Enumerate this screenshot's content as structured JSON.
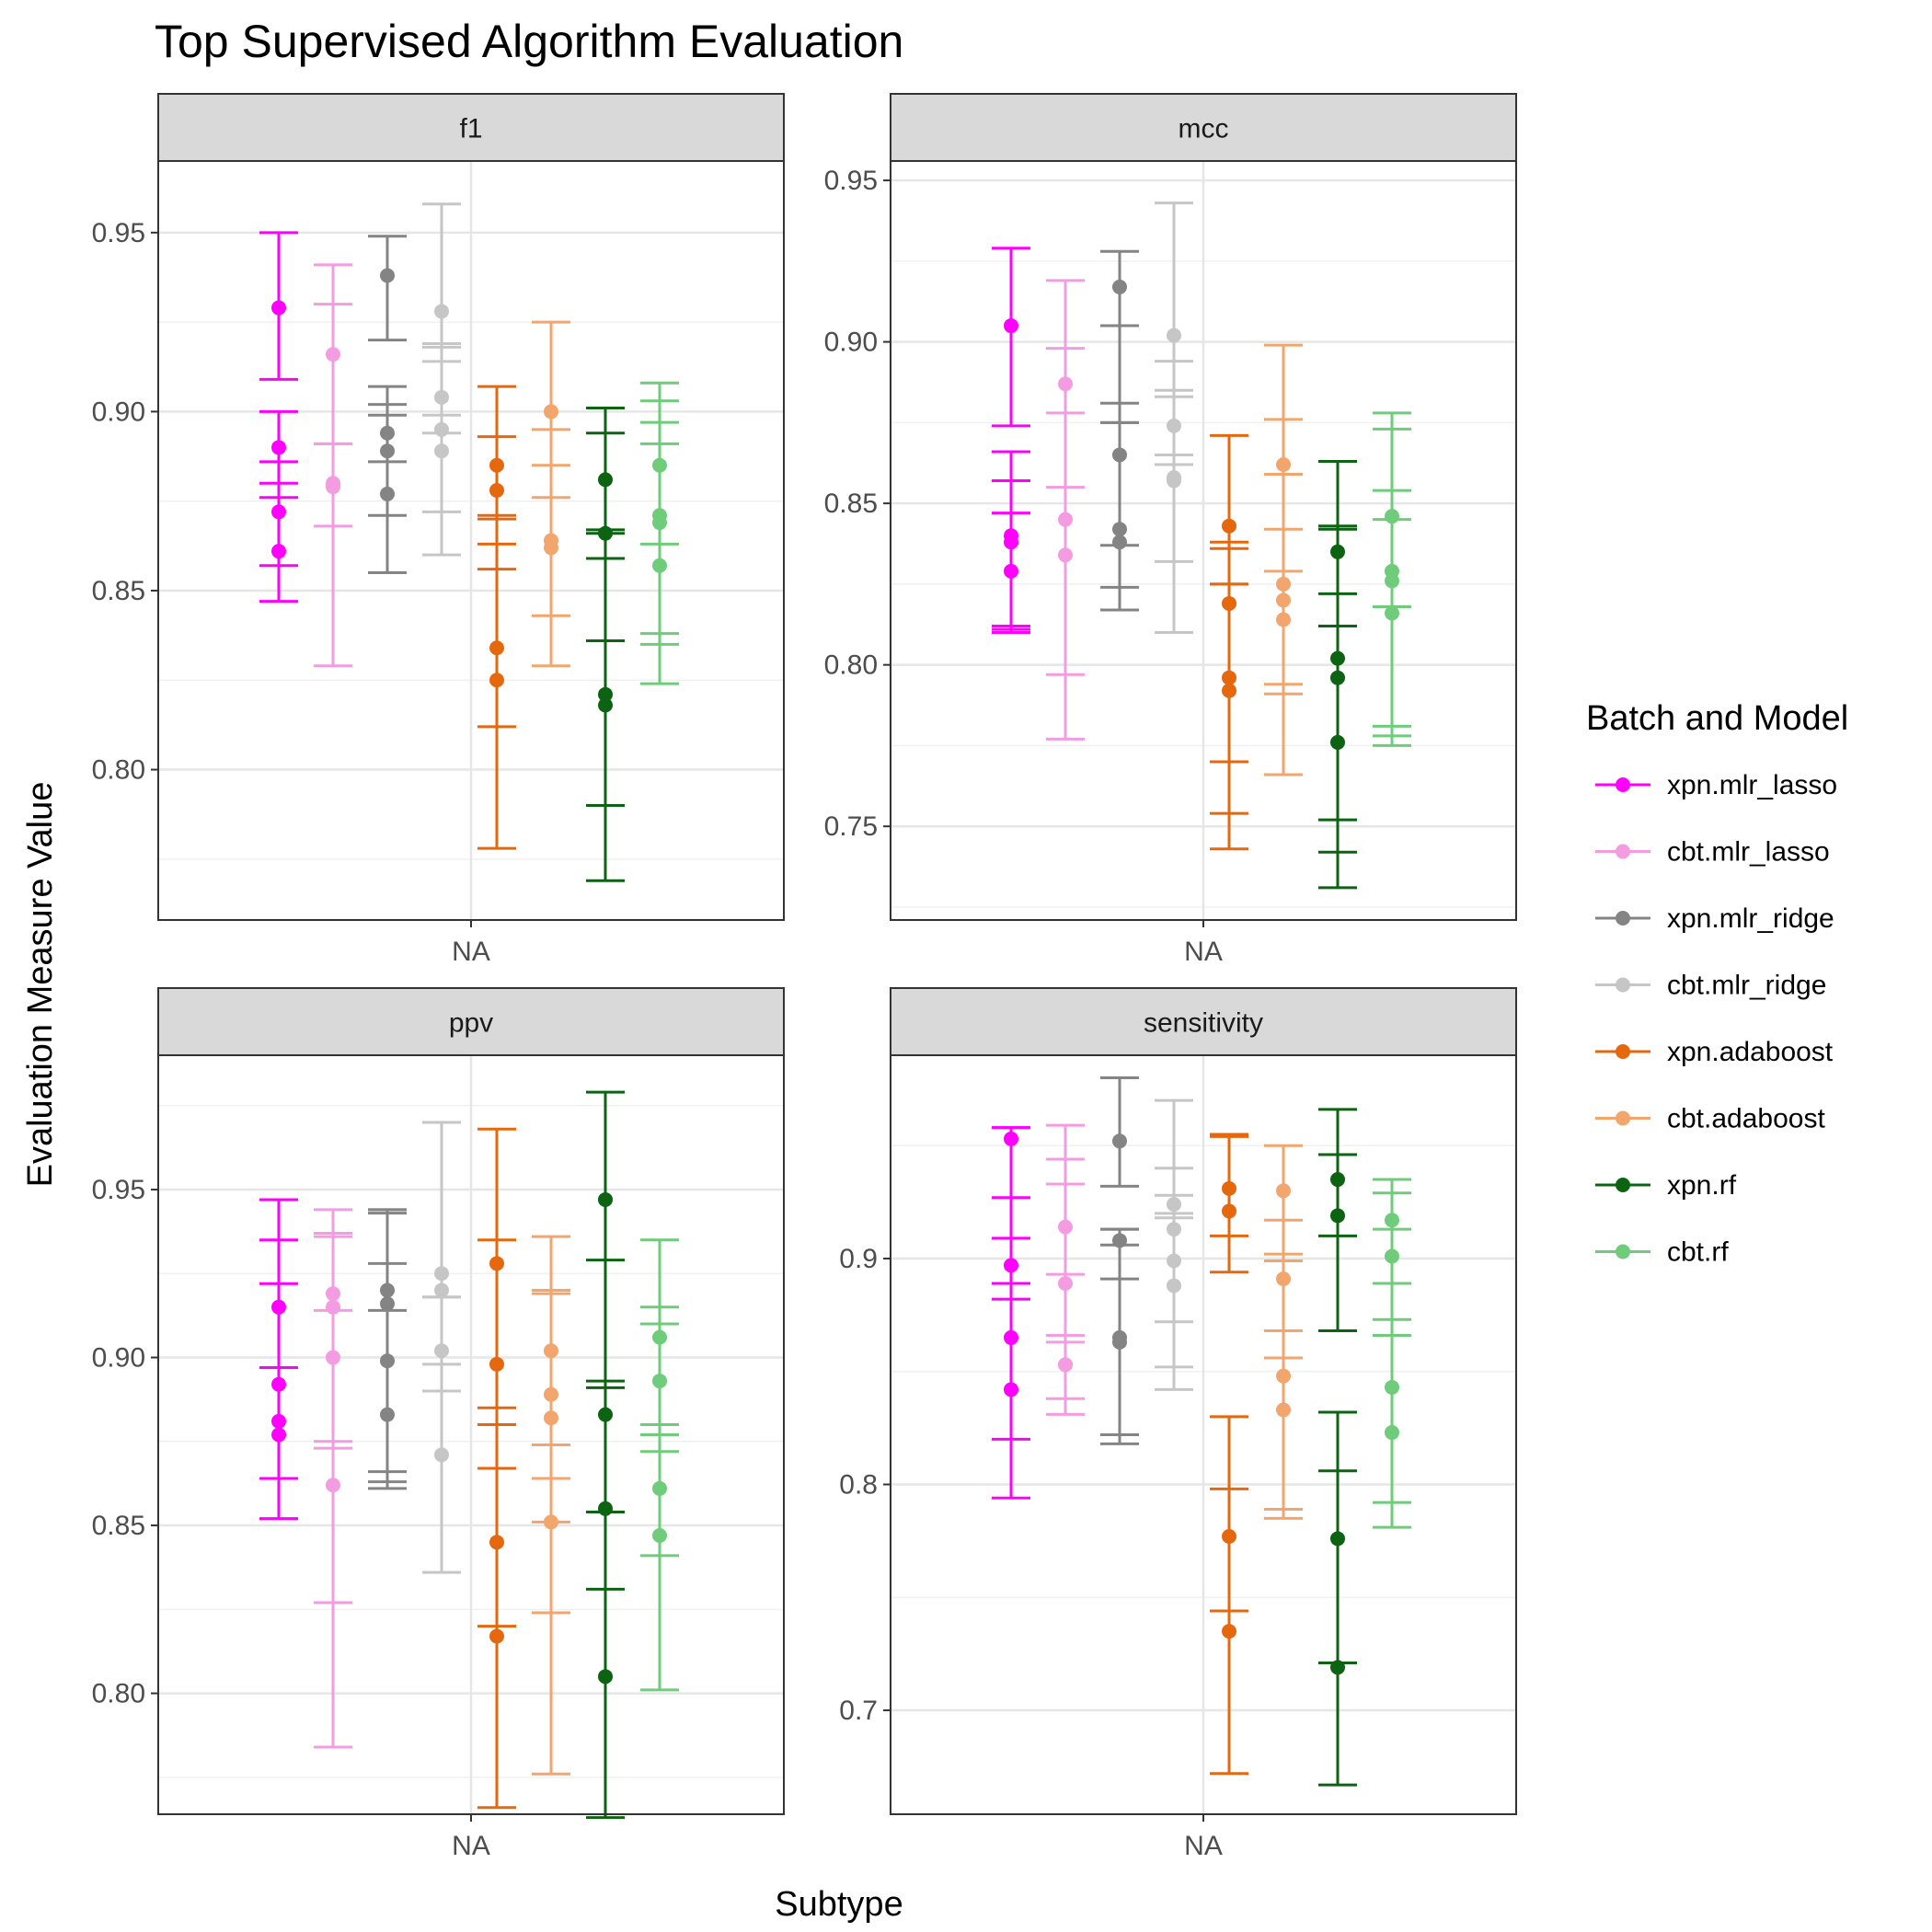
{
  "chart_data": {
    "type": "scatter",
    "title": "Top Supervised Algorithm Evaluation",
    "xlabel": "Subtype",
    "ylabel": "Evaluation Measure Value",
    "x_category": "NA",
    "legend": {
      "title": "Batch and Model",
      "placement": "right",
      "series": [
        {
          "name": "xpn.mlr_lasso",
          "color": "#ff00ff"
        },
        {
          "name": "cbt.mlr_lasso",
          "color": "#f39ce2"
        },
        {
          "name": "xpn.mlr_ridge",
          "color": "#848484"
        },
        {
          "name": "cbt.mlr_ridge",
          "color": "#c6c6c6"
        },
        {
          "name": "xpn.adaboost",
          "color": "#e5680e"
        },
        {
          "name": "cbt.adaboost",
          "color": "#f2a66d"
        },
        {
          "name": "xpn.rf",
          "color": "#0c6412"
        },
        {
          "name": "cbt.rf",
          "color": "#6fcc7a"
        }
      ]
    },
    "grid": true,
    "panels": [
      {
        "title": "f1",
        "ylim": [
          0.758,
          0.97
        ],
        "yticks": [
          0.8,
          0.85,
          0.9,
          0.95
        ],
        "ytick_labels": [
          "0.80",
          "0.85",
          "0.90",
          "0.95"
        ],
        "series": [
          {
            "points": [
              {
                "y": 0.929,
                "lo": 0.909,
                "hi": 0.95
              },
              {
                "y": 0.89,
                "lo": 0.88,
                "hi": 0.9
              },
              {
                "y": 0.872,
                "lo": 0.857,
                "hi": 0.886
              },
              {
                "y": 0.861,
                "lo": 0.847,
                "hi": 0.876
              }
            ]
          },
          {
            "points": [
              {
                "y": 0.916,
                "lo": 0.891,
                "hi": 0.941
              },
              {
                "y": 0.88,
                "lo": 0.868,
                "hi": 0.891
              },
              {
                "y": 0.879,
                "lo": 0.829,
                "hi": 0.93
              }
            ]
          },
          {
            "points": [
              {
                "y": 0.938,
                "lo": 0.92,
                "hi": 0.949
              },
              {
                "y": 0.894,
                "lo": 0.886,
                "hi": 0.902
              },
              {
                "y": 0.889,
                "lo": 0.871,
                "hi": 0.907
              },
              {
                "y": 0.877,
                "lo": 0.855,
                "hi": 0.899
              }
            ]
          },
          {
            "points": [
              {
                "y": 0.928,
                "lo": 0.899,
                "hi": 0.958
              },
              {
                "y": 0.904,
                "lo": 0.894,
                "hi": 0.914
              },
              {
                "y": 0.895,
                "lo": 0.872,
                "hi": 0.919
              },
              {
                "y": 0.889,
                "lo": 0.86,
                "hi": 0.918
              }
            ]
          },
          {
            "points": [
              {
                "y": 0.885,
                "lo": 0.87,
                "hi": 0.907
              },
              {
                "y": 0.878,
                "lo": 0.863,
                "hi": 0.893
              },
              {
                "y": 0.834,
                "lo": 0.812,
                "hi": 0.856
              },
              {
                "y": 0.825,
                "lo": 0.778,
                "hi": 0.871
              }
            ]
          },
          {
            "points": [
              {
                "y": 0.9,
                "lo": 0.876,
                "hi": 0.925
              },
              {
                "y": 0.864,
                "lo": 0.843,
                "hi": 0.885
              },
              {
                "y": 0.862,
                "lo": 0.829,
                "hi": 0.895
              }
            ]
          },
          {
            "points": [
              {
                "y": 0.881,
                "lo": 0.867,
                "hi": 0.894
              },
              {
                "y": 0.866,
                "lo": 0.836,
                "hi": 0.901
              },
              {
                "y": 0.821,
                "lo": 0.79,
                "hi": 0.859
              },
              {
                "y": 0.818,
                "lo": 0.769,
                "hi": 0.866
              }
            ]
          },
          {
            "points": [
              {
                "y": 0.885,
                "lo": 0.863,
                "hi": 0.908
              },
              {
                "y": 0.871,
                "lo": 0.838,
                "hi": 0.897
              },
              {
                "y": 0.869,
                "lo": 0.835,
                "hi": 0.903
              },
              {
                "y": 0.857,
                "lo": 0.824,
                "hi": 0.891
              }
            ]
          }
        ]
      },
      {
        "title": "mcc",
        "ylim": [
          0.721,
          0.956
        ],
        "yticks": [
          0.75,
          0.8,
          0.85,
          0.9,
          0.95
        ],
        "ytick_labels": [
          "0.75",
          "0.80",
          "0.85",
          "0.90",
          "0.95"
        ],
        "series": [
          {
            "points": [
              {
                "y": 0.905,
                "lo": 0.874,
                "hi": 0.929
              },
              {
                "y": 0.84,
                "lo": 0.811,
                "hi": 0.866
              },
              {
                "y": 0.838,
                "lo": 0.81,
                "hi": 0.857
              },
              {
                "y": 0.829,
                "lo": 0.812,
                "hi": 0.847
              }
            ]
          },
          {
            "points": [
              {
                "y": 0.887,
                "lo": 0.855,
                "hi": 0.919
              },
              {
                "y": 0.845,
                "lo": 0.797,
                "hi": 0.878
              },
              {
                "y": 0.834,
                "lo": 0.777,
                "hi": 0.898
              }
            ]
          },
          {
            "points": [
              {
                "y": 0.917,
                "lo": 0.881,
                "hi": 0.928
              },
              {
                "y": 0.865,
                "lo": 0.837,
                "hi": 0.905
              },
              {
                "y": 0.842,
                "lo": 0.824,
                "hi": 0.875
              },
              {
                "y": 0.838,
                "lo": 0.817,
                "hi": 0.875
              }
            ]
          },
          {
            "points": [
              {
                "y": 0.902,
                "lo": 0.862,
                "hi": 0.943
              },
              {
                "y": 0.874,
                "lo": 0.865,
                "hi": 0.883
              },
              {
                "y": 0.858,
                "lo": 0.832,
                "hi": 0.894
              },
              {
                "y": 0.857,
                "lo": 0.81,
                "hi": 0.885
              }
            ]
          },
          {
            "points": [
              {
                "y": 0.843,
                "lo": 0.825,
                "hi": 0.871
              },
              {
                "y": 0.819,
                "lo": 0.77,
                "hi": 0.838
              },
              {
                "y": 0.796,
                "lo": 0.754,
                "hi": 0.836
              },
              {
                "y": 0.792,
                "lo": 0.743,
                "hi": 0.825
              }
            ]
          },
          {
            "points": [
              {
                "y": 0.862,
                "lo": 0.829,
                "hi": 0.899
              },
              {
                "y": 0.825,
                "lo": 0.794,
                "hi": 0.859
              },
              {
                "y": 0.82,
                "lo": 0.791,
                "hi": 0.842
              },
              {
                "y": 0.814,
                "lo": 0.766,
                "hi": 0.876
              }
            ]
          },
          {
            "points": [
              {
                "y": 0.835,
                "lo": 0.812,
                "hi": 0.863
              },
              {
                "y": 0.802,
                "lo": 0.752,
                "hi": 0.843
              },
              {
                "y": 0.796,
                "lo": 0.742,
                "hi": 0.822
              },
              {
                "y": 0.776,
                "lo": 0.731,
                "hi": 0.842
              }
            ]
          },
          {
            "points": [
              {
                "y": 0.846,
                "lo": 0.818,
                "hi": 0.873
              },
              {
                "y": 0.829,
                "lo": 0.781,
                "hi": 0.878
              },
              {
                "y": 0.826,
                "lo": 0.778,
                "hi": 0.854
              },
              {
                "y": 0.816,
                "lo": 0.775,
                "hi": 0.845
              }
            ]
          }
        ]
      },
      {
        "title": "ppv",
        "ylim": [
          0.764,
          0.99
        ],
        "yticks": [
          0.8,
          0.85,
          0.9,
          0.95
        ],
        "ytick_labels": [
          "0.80",
          "0.85",
          "0.90",
          "0.95"
        ],
        "series": [
          {
            "points": [
              {
                "y": 0.915,
                "lo": 0.897,
                "hi": 0.935
              },
              {
                "y": 0.892,
                "lo": 0.864,
                "hi": 0.922
              },
              {
                "y": 0.881,
                "lo": 0.852,
                "hi": 0.947
              },
              {
                "y": 0.877,
                "lo": 0.852,
                "hi": 0.897
              }
            ]
          },
          {
            "points": [
              {
                "y": 0.919,
                "lo": 0.875,
                "hi": 0.936
              },
              {
                "y": 0.915,
                "lo": 0.873,
                "hi": 0.944
              },
              {
                "y": 0.9,
                "lo": 0.827,
                "hi": 0.937
              },
              {
                "y": 0.862,
                "lo": 0.784,
                "hi": 0.914
              }
            ]
          },
          {
            "points": [
              {
                "y": 0.92,
                "lo": 0.914,
                "hi": 0.928
              },
              {
                "y": 0.916,
                "lo": 0.866,
                "hi": 0.944
              },
              {
                "y": 0.899,
                "lo": 0.863,
                "hi": 0.943
              },
              {
                "y": 0.883,
                "lo": 0.861,
                "hi": 0.944
              }
            ]
          },
          {
            "points": [
              {
                "y": 0.925,
                "lo": 0.918,
                "hi": 0.97
              },
              {
                "y": 0.92,
                "lo": 0.898,
                "hi": 0.97
              },
              {
                "y": 0.902,
                "lo": 0.89,
                "hi": 0.918
              },
              {
                "y": 0.871,
                "lo": 0.836,
                "hi": 0.918
              }
            ]
          },
          {
            "points": [
              {
                "y": 0.928,
                "lo": 0.885,
                "hi": 0.968
              },
              {
                "y": 0.898,
                "lo": 0.867,
                "hi": 0.935
              },
              {
                "y": 0.845,
                "lo": 0.82,
                "hi": 0.88
              },
              {
                "y": 0.817,
                "lo": 0.766,
                "hi": 0.867
              }
            ]
          },
          {
            "points": [
              {
                "y": 0.902,
                "lo": 0.864,
                "hi": 0.936
              },
              {
                "y": 0.889,
                "lo": 0.851,
                "hi": 0.919
              },
              {
                "y": 0.882,
                "lo": 0.824,
                "hi": 0.92
              },
              {
                "y": 0.851,
                "lo": 0.776,
                "hi": 0.874
              }
            ]
          },
          {
            "points": [
              {
                "y": 0.947,
                "lo": 0.893,
                "hi": 0.979
              },
              {
                "y": 0.883,
                "lo": 0.854,
                "hi": 0.929
              },
              {
                "y": 0.855,
                "lo": 0.831,
                "hi": 0.891
              },
              {
                "y": 0.805,
                "lo": 0.763,
                "hi": 0.854
              }
            ]
          },
          {
            "points": [
              {
                "y": 0.906,
                "lo": 0.88,
                "hi": 0.935
              },
              {
                "y": 0.893,
                "lo": 0.872,
                "hi": 0.915
              },
              {
                "y": 0.861,
                "lo": 0.841,
                "hi": 0.91
              },
              {
                "y": 0.847,
                "lo": 0.801,
                "hi": 0.877
              }
            ]
          }
        ]
      },
      {
        "title": "sensitivity",
        "ylim": [
          0.654,
          0.99
        ],
        "yticks": [
          0.7,
          0.8,
          0.9
        ],
        "ytick_labels": [
          "0.7",
          "0.8",
          "0.9"
        ],
        "series": [
          {
            "points": [
              {
                "y": 0.953,
                "lo": 0.927,
                "hi": 0.958
              },
              {
                "y": 0.897,
                "lo": 0.882,
                "hi": 0.909
              },
              {
                "y": 0.865,
                "lo": 0.82,
                "hi": 0.889
              },
              {
                "y": 0.842,
                "lo": 0.794,
                "hi": 0.958
              }
            ]
          },
          {
            "points": [
              {
                "y": 0.914,
                "lo": 0.893,
                "hi": 0.944
              },
              {
                "y": 0.889,
                "lo": 0.863,
                "hi": 0.933
              },
              {
                "y": 0.853,
                "lo": 0.831,
                "hi": 0.959
              },
              {
                "y": 0.853,
                "lo": 0.838,
                "hi": 0.866
              }
            ]
          },
          {
            "points": [
              {
                "y": 0.952,
                "lo": 0.932,
                "hi": 0.98
              },
              {
                "y": 0.908,
                "lo": 0.891,
                "hi": 0.913
              },
              {
                "y": 0.865,
                "lo": 0.822,
                "hi": 0.913
              },
              {
                "y": 0.863,
                "lo": 0.818,
                "hi": 0.906
              }
            ]
          },
          {
            "points": [
              {
                "y": 0.924,
                "lo": 0.92,
                "hi": 0.97
              },
              {
                "y": 0.913,
                "lo": 0.872,
                "hi": 0.94
              },
              {
                "y": 0.899,
                "lo": 0.852,
                "hi": 0.928
              },
              {
                "y": 0.888,
                "lo": 0.842,
                "hi": 0.918
              }
            ]
          },
          {
            "points": [
              {
                "y": 0.931,
                "lo": 0.91,
                "hi": 0.955
              },
              {
                "y": 0.921,
                "lo": 0.894,
                "hi": 0.954
              },
              {
                "y": 0.777,
                "lo": 0.744,
                "hi": 0.83
              },
              {
                "y": 0.735,
                "lo": 0.672,
                "hi": 0.798
              }
            ]
          },
          {
            "points": [
              {
                "y": 0.93,
                "lo": 0.899,
                "hi": 0.95
              },
              {
                "y": 0.891,
                "lo": 0.856,
                "hi": 0.917
              },
              {
                "y": 0.848,
                "lo": 0.789,
                "hi": 0.902
              },
              {
                "y": 0.833,
                "lo": 0.785,
                "hi": 0.868
              }
            ]
          },
          {
            "points": [
              {
                "y": 0.935,
                "lo": 0.91,
                "hi": 0.966
              },
              {
                "y": 0.919,
                "lo": 0.868,
                "hi": 0.946
              },
              {
                "y": 0.776,
                "lo": 0.721,
                "hi": 0.832
              },
              {
                "y": 0.719,
                "lo": 0.667,
                "hi": 0.806
              }
            ]
          },
          {
            "points": [
              {
                "y": 0.917,
                "lo": 0.889,
                "hi": 0.935
              },
              {
                "y": 0.901,
                "lo": 0.873,
                "hi": 0.929
              },
              {
                "y": 0.843,
                "lo": 0.792,
                "hi": 0.913
              },
              {
                "y": 0.823,
                "lo": 0.781,
                "hi": 0.866
              }
            ]
          }
        ]
      }
    ]
  }
}
